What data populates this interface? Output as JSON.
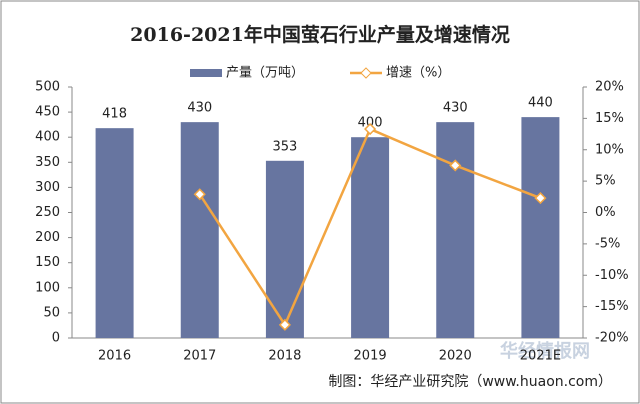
{
  "chart_data": {
    "type": "bar",
    "title": "2016-2021年中国萤石行业产量及增速情况",
    "categories": [
      "2016",
      "2017",
      "2018",
      "2019",
      "2020",
      "2021E"
    ],
    "series": [
      {
        "name": "产量（万吨）",
        "type": "bar",
        "color": "#6775a0",
        "values": [
          418,
          430,
          353,
          400,
          430,
          440
        ]
      },
      {
        "name": "增速（%）",
        "type": "line",
        "axis": "y2",
        "color": "#f2a541",
        "values": [
          null,
          2.9,
          -17.9,
          13.3,
          7.5,
          2.3
        ]
      }
    ],
    "ylim": [
      0,
      500
    ],
    "yticks": [
      0,
      50,
      100,
      150,
      200,
      250,
      300,
      350,
      400,
      450,
      500
    ],
    "y2lim": [
      -20,
      20
    ],
    "y2ticks": [
      {
        "value": -20,
        "label": "-20%"
      },
      {
        "value": -15,
        "label": "-15%"
      },
      {
        "value": -10,
        "label": "-10%"
      },
      {
        "value": -5,
        "label": "-5%"
      },
      {
        "value": 0,
        "label": "0%"
      },
      {
        "value": 5,
        "label": "5%"
      },
      {
        "value": 10,
        "label": "10%"
      },
      {
        "value": 15,
        "label": "15%"
      },
      {
        "value": 20,
        "label": "20%"
      }
    ],
    "legend": "top",
    "source": "制图：华经产业研究院（www.huaon.com）",
    "watermark": "华经情报网"
  }
}
